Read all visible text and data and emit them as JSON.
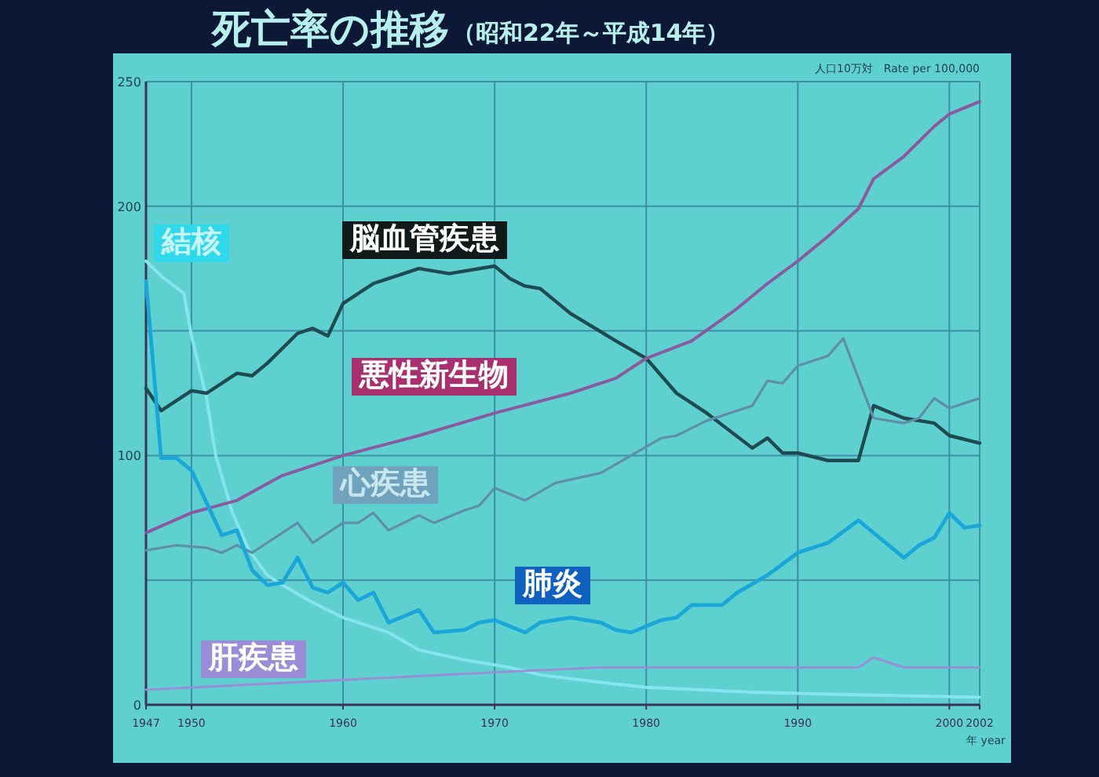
{
  "chart_data": {
    "type": "line",
    "title": "死亡率の推移",
    "subtitle": "（昭和22年～平成14年）",
    "xlabel": "年 year",
    "annotations": [
      "人口10万対　Rate per 100,000"
    ],
    "xlim": [
      1947,
      2002
    ],
    "xticks": [
      1947,
      1950,
      1960,
      1970,
      1980,
      1990,
      2000,
      2002
    ],
    "ylim": [
      0,
      250
    ],
    "yticks": [
      0,
      {
        "value": 50,
        "label": null
      },
      100,
      {
        "value": 150,
        "label": null
      },
      200,
      250
    ],
    "grid": true,
    "legend": false,
    "marker": "none",
    "line_style": "solid",
    "series": [
      {
        "name": "結核",
        "color": "#86e4f0",
        "x": [
          1947,
          1948,
          1949.5,
          1950,
          1951,
          1951.6,
          1952.7,
          1953.8,
          1955,
          1956,
          1958,
          1960,
          1963,
          1965,
          1968,
          1971,
          1973,
          1977,
          1980,
          1987,
          1994,
          2002
        ],
        "values": [
          178,
          172,
          165,
          148,
          123,
          100,
          77,
          62,
          52,
          48,
          41,
          35,
          29,
          22,
          18,
          15,
          12,
          9,
          7,
          5,
          4,
          3
        ]
      },
      {
        "name": "脳血管疾患",
        "color": "#1f4a50",
        "x": [
          1947,
          1948,
          1950,
          1951,
          1953,
          1954,
          1955,
          1957,
          1958,
          1959,
          1960,
          1962,
          1963,
          1965,
          1967,
          1970,
          1971,
          1972,
          1973,
          1975,
          1978,
          1980,
          1982,
          1984,
          1987,
          1988,
          1989,
          1990,
          1992,
          1994,
          1995,
          1997,
          1999,
          2000,
          2002
        ],
        "values": [
          127,
          118,
          126,
          125,
          133,
          132,
          137,
          149,
          151,
          148,
          161,
          169,
          171,
          175,
          173,
          176,
          171,
          168,
          167,
          157,
          146,
          139,
          125,
          117,
          103,
          107,
          101,
          101,
          98,
          98,
          120,
          115,
          113,
          108,
          105
        ]
      },
      {
        "name": "悪性新生物",
        "color": "#8a5aa0",
        "x": [
          1947,
          1950,
          1953,
          1956,
          1960,
          1965,
          1970,
          1975,
          1978,
          1980,
          1983,
          1986,
          1988,
          1990,
          1992,
          1994,
          1995,
          1997,
          1999,
          2000,
          2002
        ],
        "values": [
          69,
          77,
          82,
          92,
          100,
          108,
          117,
          125,
          131,
          139,
          146,
          159,
          169,
          178,
          188,
          199,
          211,
          220,
          232,
          237,
          242
        ]
      },
      {
        "name": "心疾患",
        "color": "#5f8ea8",
        "x": [
          1947,
          1949,
          1951,
          1952,
          1953,
          1954,
          1957,
          1958,
          1960,
          1961,
          1962,
          1963,
          1965,
          1966,
          1968,
          1969,
          1970,
          1972,
          1974,
          1977,
          1979,
          1981,
          1982,
          1984,
          1987,
          1988,
          1989,
          1990,
          1992,
          1993,
          1995,
          1997,
          1998,
          1999,
          2000,
          2002
        ],
        "values": [
          62,
          64,
          63,
          61,
          64,
          61,
          73,
          65,
          73,
          73,
          77,
          70,
          76,
          73,
          78,
          80,
          87,
          82,
          89,
          93,
          100,
          107,
          108,
          114,
          120,
          130,
          129,
          136,
          140,
          147,
          115,
          113,
          115,
          123,
          119,
          123
        ]
      },
      {
        "name": "肺炎",
        "color": "#19a6d8",
        "x": [
          1947,
          1948,
          1949,
          1950,
          1952,
          1953,
          1954,
          1955,
          1956,
          1957,
          1958,
          1959,
          1960,
          1961,
          1962,
          1963,
          1965,
          1966,
          1968,
          1969,
          1970,
          1972,
          1973,
          1975,
          1977,
          1978,
          1979,
          1981,
          1982,
          1983,
          1985,
          1986,
          1988,
          1990,
          1992,
          1994,
          1997,
          1998,
          1999,
          2000,
          2001,
          2002
        ],
        "values": [
          170,
          99,
          99,
          94,
          68,
          70,
          54,
          48,
          49,
          59,
          47,
          45,
          49,
          42,
          45,
          33,
          38,
          29,
          30,
          33,
          34,
          29,
          33,
          35,
          33,
          30,
          29,
          34,
          35,
          40,
          40,
          45,
          52,
          61,
          65,
          74,
          59,
          64,
          67,
          77,
          71,
          72
        ]
      },
      {
        "name": "肝疾患",
        "color": "#9a8cd6",
        "x": [
          1947,
          1960,
          1970,
          1977,
          1980,
          1994,
          1995,
          1997,
          2002
        ],
        "values": [
          6,
          10,
          13,
          15,
          15,
          15,
          19,
          15,
          15
        ]
      }
    ]
  }
}
